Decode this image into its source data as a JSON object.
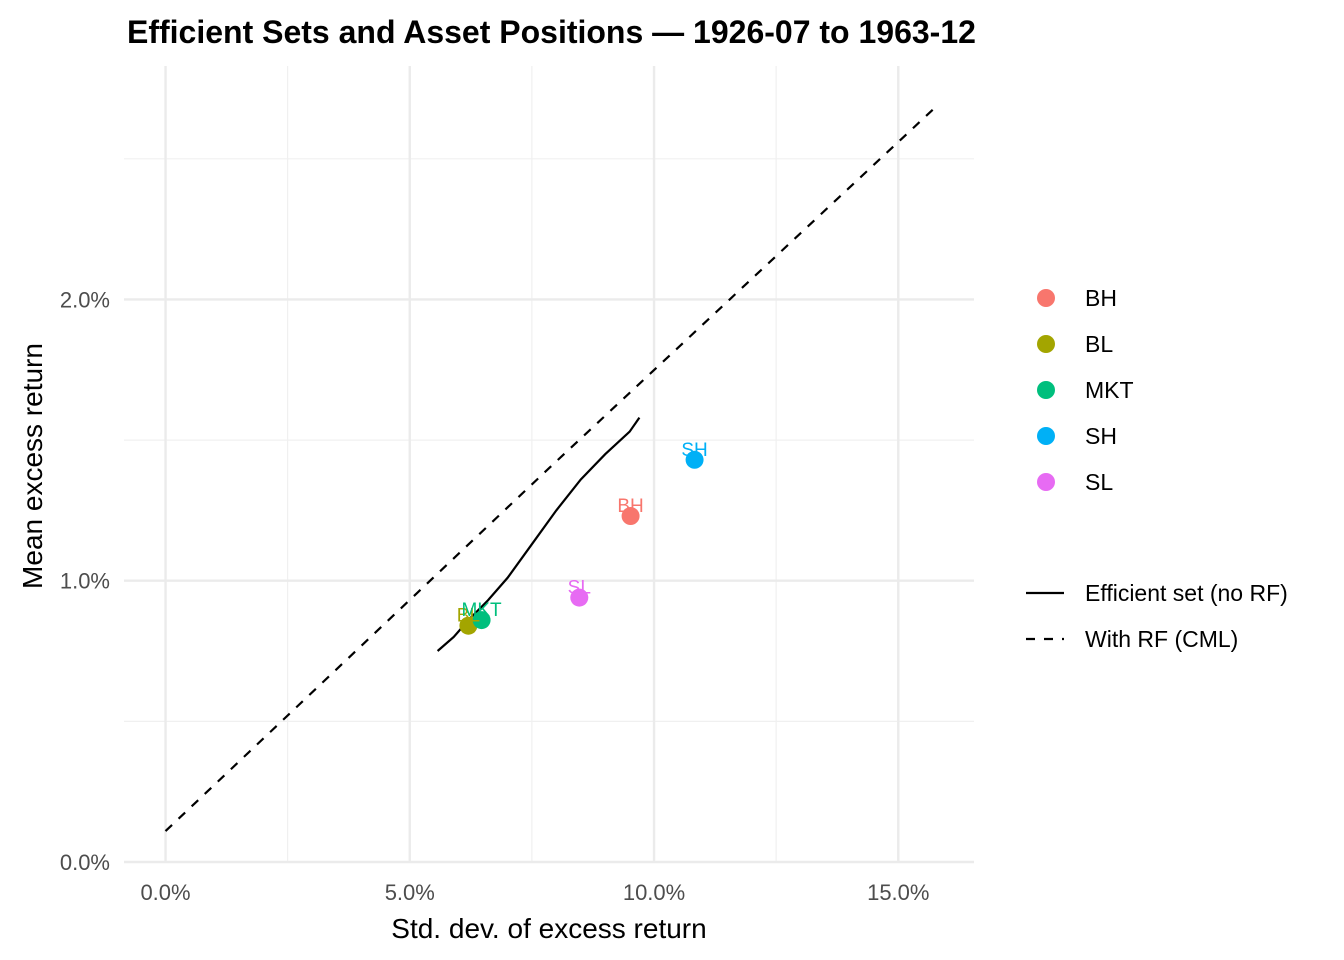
{
  "chart_data": {
    "type": "scatter",
    "title": "Efficient Sets and Asset Positions — 1926-07 to 1963-12",
    "xlabel": "Std. dev. of excess return",
    "ylabel": "Mean excess return",
    "xlim": [
      -0.0085,
      0.1655
    ],
    "ylim": [
      0,
      0.0283
    ],
    "x_ticks": [
      0.0,
      0.05,
      0.1,
      0.15
    ],
    "x_tick_labels": [
      "0.0%",
      "5.0%",
      "10.0%",
      "15.0%"
    ],
    "y_ticks": [
      0.0,
      0.01,
      0.02
    ],
    "y_tick_labels": [
      "0.0%",
      "1.0%",
      "2.0%"
    ],
    "grid": true,
    "legend_position": "right",
    "points": [
      {
        "name": "BH",
        "x": 0.0952,
        "y": 0.0123,
        "color": "#F8766D"
      },
      {
        "name": "BL",
        "x": 0.062,
        "y": 0.0084,
        "color": "#A3A500"
      },
      {
        "name": "MKT",
        "x": 0.0647,
        "y": 0.0086,
        "color": "#00BF7D"
      },
      {
        "name": "SH",
        "x": 0.1083,
        "y": 0.0143,
        "color": "#00B0F6"
      },
      {
        "name": "SL",
        "x": 0.0847,
        "y": 0.0094,
        "color": "#E76BF3"
      }
    ],
    "series": [
      {
        "name": "Efficient set (no RF)",
        "linetype": "solid",
        "x": [
          0.0557,
          0.059,
          0.062,
          0.066,
          0.07,
          0.075,
          0.08,
          0.085,
          0.09,
          0.095,
          0.097
        ],
        "y": [
          0.0075,
          0.008,
          0.0086,
          0.0093,
          0.0101,
          0.0113,
          0.0125,
          0.0136,
          0.0145,
          0.0153,
          0.0158
        ]
      },
      {
        "name": "With RF (CML)",
        "linetype": "dashed",
        "x": [
          0.0,
          0.0785,
          0.158
        ],
        "y": [
          0.0011,
          0.014,
          0.0269
        ]
      }
    ],
    "legend": {
      "points": [
        "BH",
        "BL",
        "MKT",
        "SH",
        "SL"
      ],
      "lines": [
        "Efficient set (no RF)",
        "With RF (CML)"
      ]
    }
  }
}
